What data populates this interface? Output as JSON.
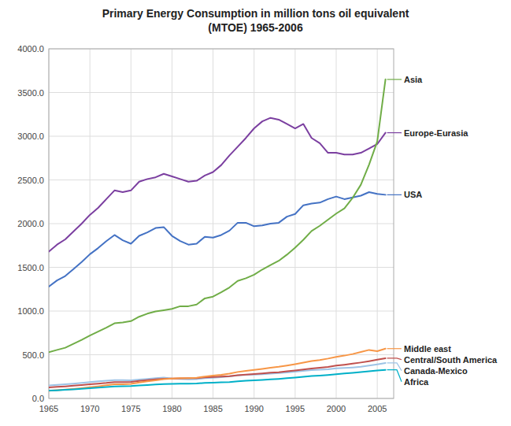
{
  "chart_data": {
    "type": "line",
    "title": "Primary Energy Consumption in million tons oil equivalent\n(MTOE) 1965-2006",
    "x": [
      1965,
      1966,
      1967,
      1968,
      1969,
      1970,
      1971,
      1972,
      1973,
      1974,
      1975,
      1976,
      1977,
      1978,
      1979,
      1980,
      1981,
      1982,
      1983,
      1984,
      1985,
      1986,
      1987,
      1988,
      1989,
      1990,
      1991,
      1992,
      1993,
      1994,
      1995,
      1996,
      1997,
      1998,
      1999,
      2000,
      2001,
      2002,
      2003,
      2004,
      2005,
      2006
    ],
    "series": [
      {
        "name": "Europe-Eurasia",
        "color": "#7B3FA0",
        "values": [
          1680,
          1760,
          1820,
          1910,
          2000,
          2100,
          2180,
          2280,
          2380,
          2360,
          2380,
          2480,
          2510,
          2530,
          2570,
          2540,
          2510,
          2480,
          2490,
          2550,
          2590,
          2670,
          2780,
          2880,
          2980,
          3090,
          3170,
          3210,
          3190,
          3140,
          3090,
          3140,
          2980,
          2920,
          2810,
          2810,
          2790,
          2790,
          2810,
          2860,
          2910,
          3040
        ]
      },
      {
        "name": "USA",
        "color": "#4472C4",
        "values": [
          1280,
          1350,
          1400,
          1480,
          1560,
          1650,
          1720,
          1800,
          1870,
          1810,
          1770,
          1860,
          1900,
          1950,
          1960,
          1860,
          1800,
          1760,
          1770,
          1850,
          1840,
          1870,
          1920,
          2010,
          2010,
          1970,
          1980,
          2000,
          2010,
          2080,
          2110,
          2210,
          2230,
          2240,
          2280,
          2310,
          2280,
          2300,
          2320,
          2360,
          2340,
          2330
        ]
      },
      {
        "name": "Asia",
        "color": "#70AD47",
        "values": [
          530,
          555,
          580,
          625,
          670,
          720,
          765,
          810,
          860,
          870,
          885,
          935,
          970,
          995,
          1010,
          1025,
          1055,
          1055,
          1075,
          1145,
          1165,
          1215,
          1270,
          1345,
          1375,
          1415,
          1475,
          1525,
          1575,
          1645,
          1725,
          1815,
          1915,
          1975,
          2045,
          2115,
          2175,
          2295,
          2445,
          2675,
          2940,
          3650
        ]
      },
      {
        "name": "Canada-Mexico",
        "color": "#9DC3E6",
        "values": [
          148,
          155,
          162,
          169,
          177,
          187,
          195,
          203,
          210,
          210,
          207,
          216,
          224,
          232,
          238,
          228,
          223,
          219,
          220,
          233,
          236,
          243,
          252,
          264,
          270,
          273,
          278,
          284,
          290,
          298,
          306,
          316,
          324,
          328,
          334,
          344,
          348,
          354,
          362,
          376,
          390,
          406
        ]
      },
      {
        "name": "Central/South America",
        "color": "#C0504D",
        "values": [
          126,
          132,
          138,
          146,
          154,
          163,
          170,
          177,
          187,
          187,
          190,
          200,
          209,
          218,
          225,
          228,
          230,
          231,
          233,
          241,
          245,
          249,
          255,
          265,
          272,
          280,
          287,
          294,
          300,
          310,
          320,
          332,
          343,
          351,
          361,
          376,
          386,
          398,
          411,
          426,
          443,
          460
        ]
      },
      {
        "name": "Middle east",
        "color": "#F79646",
        "values": [
          88,
          94,
          101,
          109,
          118,
          128,
          138,
          150,
          162,
          163,
          167,
          183,
          195,
          208,
          220,
          228,
          232,
          232,
          236,
          251,
          261,
          271,
          284,
          303,
          316,
          326,
          338,
          352,
          362,
          377,
          392,
          409,
          428,
          440,
          456,
          475,
          490,
          508,
          531,
          555,
          540,
          570
        ]
      },
      {
        "name": "Africa",
        "color": "#00B0C8",
        "values": [
          89,
          93,
          98,
          104,
          110,
          117,
          124,
          131,
          138,
          139,
          141,
          148,
          154,
          160,
          165,
          167,
          169,
          170,
          171,
          177,
          180,
          184,
          188,
          196,
          202,
          207,
          212,
          218,
          224,
          231,
          239,
          248,
          257,
          262,
          269,
          278,
          285,
          292,
          301,
          311,
          319,
          327
        ]
      }
    ],
    "xlim": [
      1965,
      2007
    ],
    "ylim": [
      0,
      4000
    ],
    "xticks": [
      1965,
      1970,
      1975,
      1980,
      1985,
      1990,
      1995,
      2000,
      2005
    ],
    "yticks": [
      {
        "value": 0,
        "label": "0.0"
      },
      {
        "value": 500,
        "label": "500.0"
      },
      {
        "value": 1000,
        "label": "1000.0"
      },
      {
        "value": 1500,
        "label": "1500.0"
      },
      {
        "value": 2000,
        "label": "2000.0"
      },
      {
        "value": 2500,
        "label": "2500.0"
      },
      {
        "value": 3000,
        "label": "3000.0"
      },
      {
        "value": 3500,
        "label": "3500.0"
      },
      {
        "value": 4000,
        "label": "4000.0"
      }
    ],
    "grid": true
  }
}
